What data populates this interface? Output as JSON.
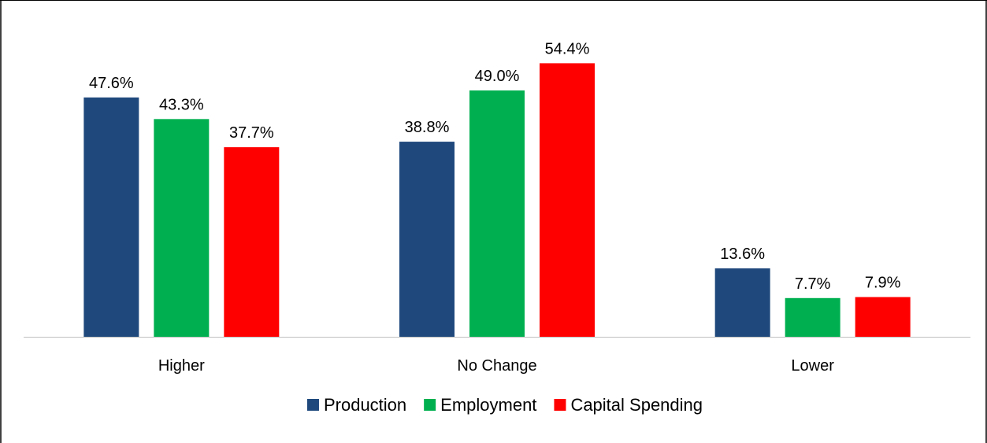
{
  "chart_data": {
    "type": "bar",
    "title": "",
    "xlabel": "",
    "ylabel": "",
    "categories": [
      "Higher",
      "No Change",
      "Lower"
    ],
    "series": [
      {
        "name": "Production",
        "color": "#1F497D",
        "values": [
          47.6,
          38.8,
          13.6
        ],
        "labels": [
          "47.6%",
          "38.8%",
          "13.6%"
        ]
      },
      {
        "name": "Employment",
        "color": "#00B050",
        "values": [
          43.3,
          49.0,
          7.7
        ],
        "labels": [
          "43.3%",
          "49.0%",
          "7.7%"
        ]
      },
      {
        "name": "Capital Spending",
        "color": "#FF0000",
        "values": [
          37.7,
          54.4,
          7.9
        ],
        "labels": [
          "37.7%",
          "54.4%",
          "7.9%"
        ]
      }
    ],
    "ylim": [
      0,
      60
    ],
    "grid": false,
    "legend_position": "bottom"
  }
}
